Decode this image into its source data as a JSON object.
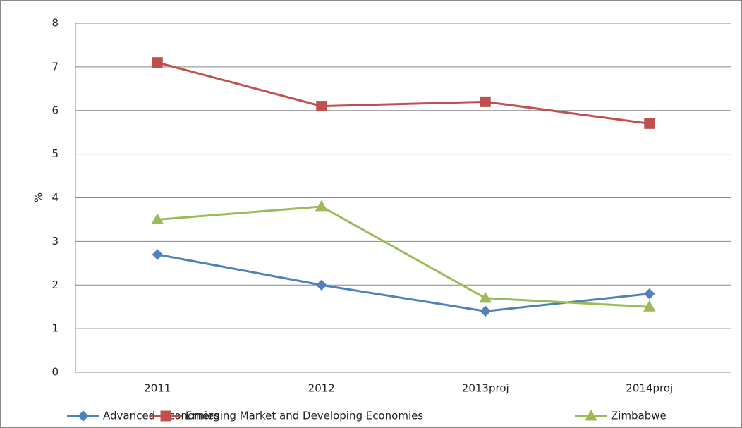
{
  "chart_data": {
    "type": "line",
    "y_label": "%",
    "categories": [
      "2011",
      "2012",
      "2013proj",
      "2014proj"
    ],
    "series": [
      {
        "name": "Advanced  Economies",
        "color": "#4f81bd",
        "marker": "diamond",
        "values": [
          2.7,
          2.0,
          1.4,
          1.8
        ]
      },
      {
        "name": "Emerging Market and Developing Economies",
        "color": "#c0504d",
        "marker": "square",
        "values": [
          7.1,
          6.1,
          6.2,
          5.7
        ]
      },
      {
        "name": "Zimbabwe",
        "color": "#9bbb59",
        "marker": "triangle",
        "values": [
          3.5,
          3.8,
          1.7,
          1.5
        ]
      }
    ],
    "ylim": [
      0,
      8
    ],
    "yticks": [
      0,
      1,
      2,
      3,
      4,
      5,
      6,
      7,
      8
    ],
    "grid": true,
    "legend": "bottom"
  }
}
